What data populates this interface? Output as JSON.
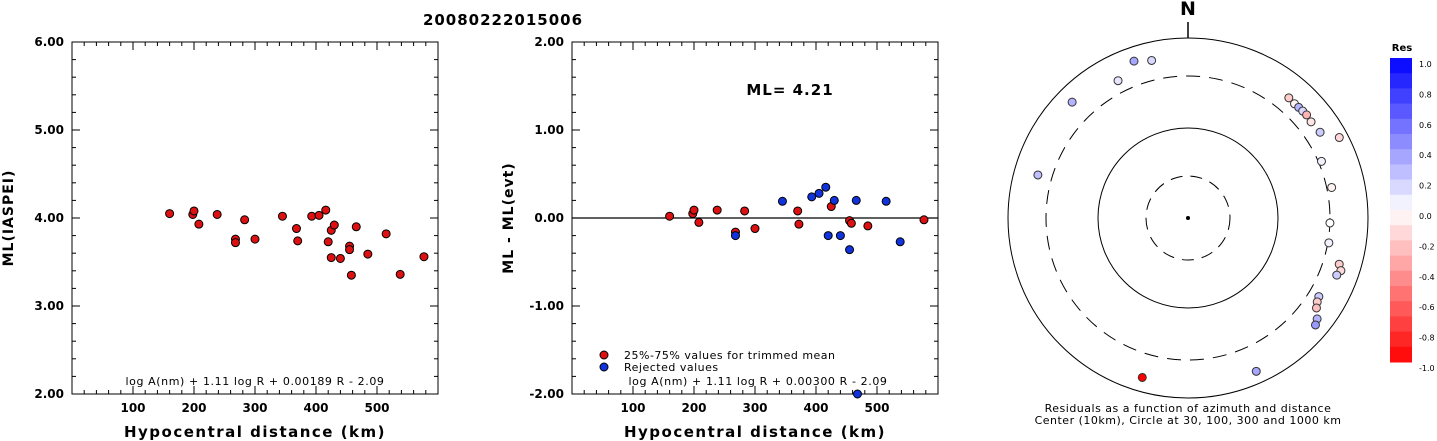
{
  "figure_title": "20080222015006",
  "chart_data": [
    {
      "type": "scatter",
      "xlabel": "Hypocentral distance (km)",
      "ylabel": "ML(IASPEI)",
      "xlim": [
        0,
        600
      ],
      "ylim": [
        2.0,
        6.0
      ],
      "xticks": [
        "100",
        "200",
        "300",
        "400",
        "500"
      ],
      "yticks": [
        "2.00",
        "3.00",
        "4.00",
        "5.00",
        "6.00"
      ],
      "formula": "log A(nm) + 1.11 log R + 0.00189 R - 2.09",
      "series": [
        {
          "color": "#dd1111",
          "points": [
            [
              160,
              4.05
            ],
            [
              198,
              4.04
            ],
            [
              200,
              4.08
            ],
            [
              208,
              3.93
            ],
            [
              238,
              4.04
            ],
            [
              268,
              3.76
            ],
            [
              268,
              3.72
            ],
            [
              283,
              3.98
            ],
            [
              300,
              3.76
            ],
            [
              345,
              4.02
            ],
            [
              368,
              3.88
            ],
            [
              370,
              3.74
            ],
            [
              393,
              4.02
            ],
            [
              405,
              4.03
            ],
            [
              416,
              4.09
            ],
            [
              420,
              3.73
            ],
            [
              425,
              3.86
            ],
            [
              425,
              3.55
            ],
            [
              430,
              3.92
            ],
            [
              440,
              3.54
            ],
            [
              455,
              3.68
            ],
            [
              455,
              3.64
            ],
            [
              458,
              3.35
            ],
            [
              466,
              3.9
            ],
            [
              485,
              3.59
            ],
            [
              515,
              3.82
            ],
            [
              538,
              3.36
            ],
            [
              577,
              3.56
            ]
          ]
        }
      ]
    },
    {
      "type": "scatter",
      "xlabel": "Hypocentral distance (km)",
      "ylabel": "ML - ML(evt)",
      "xlim": [
        0,
        600
      ],
      "ylim": [
        -2.0,
        2.0
      ],
      "xticks": [
        "100",
        "200",
        "300",
        "400",
        "500"
      ],
      "yticks": [
        "-2.00",
        "-1.00",
        "0.00",
        "1.00",
        "2.00"
      ],
      "annotation": "ML= 4.21",
      "formula": "log A(nm) + 1.11 log R + 0.00300 R - 2.09",
      "legend": [
        {
          "label": "25%-75% values for trimmed mean",
          "color": "#dd1111"
        },
        {
          "label": "Rejected values",
          "color": "#1133dd"
        }
      ],
      "series": [
        {
          "name": "25%-75% values for trimmed mean",
          "color": "#dd1111",
          "points": [
            [
              160,
              0.02
            ],
            [
              198,
              0.05
            ],
            [
              200,
              0.09
            ],
            [
              208,
              -0.05
            ],
            [
              238,
              0.09
            ],
            [
              268,
              -0.16
            ],
            [
              283,
              0.08
            ],
            [
              300,
              -0.12
            ],
            [
              370,
              0.08
            ],
            [
              372,
              -0.07
            ],
            [
              425,
              0.13
            ],
            [
              455,
              -0.03
            ],
            [
              458,
              -0.06
            ],
            [
              485,
              -0.09
            ],
            [
              577,
              -0.02
            ]
          ]
        },
        {
          "name": "Rejected values",
          "color": "#1133dd",
          "points": [
            [
              268,
              -0.2
            ],
            [
              345,
              0.19
            ],
            [
              393,
              0.24
            ],
            [
              405,
              0.28
            ],
            [
              416,
              0.35
            ],
            [
              420,
              -0.2
            ],
            [
              430,
              0.2
            ],
            [
              440,
              -0.2
            ],
            [
              455,
              -0.36
            ],
            [
              466,
              0.2
            ],
            [
              468,
              -2.0
            ],
            [
              515,
              0.19
            ],
            [
              538,
              -0.27
            ]
          ]
        }
      ]
    },
    {
      "type": "scatter",
      "subtype": "polar",
      "north_label": "N",
      "caption_lines": [
        "Residuals as a function of azimuth and distance",
        "Center (10km), Circle at 30, 100, 300 and 1000 km"
      ],
      "colorbar": {
        "title": "Res",
        "ticks": [
          "1.0",
          "0.8",
          "0.6",
          "0.4",
          "0.2",
          "0.0",
          "-0.2",
          "-0.4",
          "-0.6",
          "-0.8",
          "-1.0"
        ]
      },
      "points": [
        {
          "azimuth": 315,
          "distance": 600,
          "residual": 0.3
        },
        {
          "azimuth": 333,
          "distance": 440,
          "residual": 0.1
        },
        {
          "azimuth": 341,
          "distance": 640,
          "residual": 0.35
        },
        {
          "azimuth": 347,
          "distance": 560,
          "residual": 0.15
        },
        {
          "azimuth": 286,
          "distance": 470,
          "residual": 0.25
        },
        {
          "azimuth": 40,
          "distance": 480,
          "residual": -0.2
        },
        {
          "azimuth": 43,
          "distance": 470,
          "residual": -0.05
        },
        {
          "azimuth": 45,
          "distance": 475,
          "residual": 0.3
        },
        {
          "azimuth": 47,
          "distance": 480,
          "residual": 0.15
        },
        {
          "azimuth": 49,
          "distance": 485,
          "residual": -0.3
        },
        {
          "azimuth": 52,
          "distance": 470,
          "residual": -0.1
        },
        {
          "azimuth": 57,
          "distance": 490,
          "residual": 0.2
        },
        {
          "azimuth": 62,
          "distance": 760,
          "residual": -0.15
        },
        {
          "azimuth": 67,
          "distance": 330,
          "residual": 0.05
        },
        {
          "azimuth": 78,
          "distance": 350,
          "residual": -0.05
        },
        {
          "azimuth": 92,
          "distance": 300,
          "residual": 0.0
        },
        {
          "azimuth": 100,
          "distance": 310,
          "residual": 0.05
        },
        {
          "azimuth": 107,
          "distance": 500,
          "residual": -0.2
        },
        {
          "azimuth": 109,
          "distance": 560,
          "residual": -0.15
        },
        {
          "azimuth": 111,
          "distance": 520,
          "residual": 0.2
        },
        {
          "azimuth": 121,
          "distance": 420,
          "residual": 0.2
        },
        {
          "azimuth": 123,
          "distance": 440,
          "residual": -0.2
        },
        {
          "azimuth": 125,
          "distance": 480,
          "residual": -0.25
        },
        {
          "azimuth": 128,
          "distance": 600,
          "residual": 0.3
        },
        {
          "azimuth": 130,
          "distance": 650,
          "residual": 0.4
        },
        {
          "azimuth": 156,
          "distance": 680,
          "residual": 0.35
        },
        {
          "azimuth": 196,
          "distance": 640,
          "residual": -1.0
        }
      ]
    }
  ]
}
